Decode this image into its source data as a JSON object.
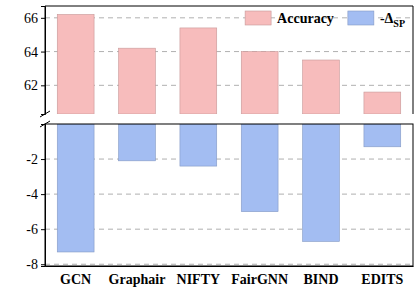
{
  "chart_data": {
    "type": "bar",
    "categories": [
      "GCN",
      "Graphair",
      "NIFTY",
      "FairGNN",
      "BIND",
      "EDITS"
    ],
    "series": [
      {
        "name": "Accuracy",
        "color": "#f7bcbc",
        "values": [
          66.2,
          64.2,
          65.4,
          64.0,
          63.5,
          61.6
        ]
      },
      {
        "name": "-ΔSP",
        "color": "#a3bdf2",
        "axis": "y2",
        "values": [
          -7.3,
          -2.1,
          -2.4,
          -5.0,
          -6.7,
          -1.3
        ]
      }
    ],
    "ylim": [
      60.3,
      66.7
    ],
    "yticks": [
      62,
      64,
      66
    ],
    "y2lim": [
      -8.1,
      0
    ],
    "y2ticks": [
      -2,
      -4,
      -6,
      -8
    ],
    "grid": true,
    "legend": "upper right"
  }
}
